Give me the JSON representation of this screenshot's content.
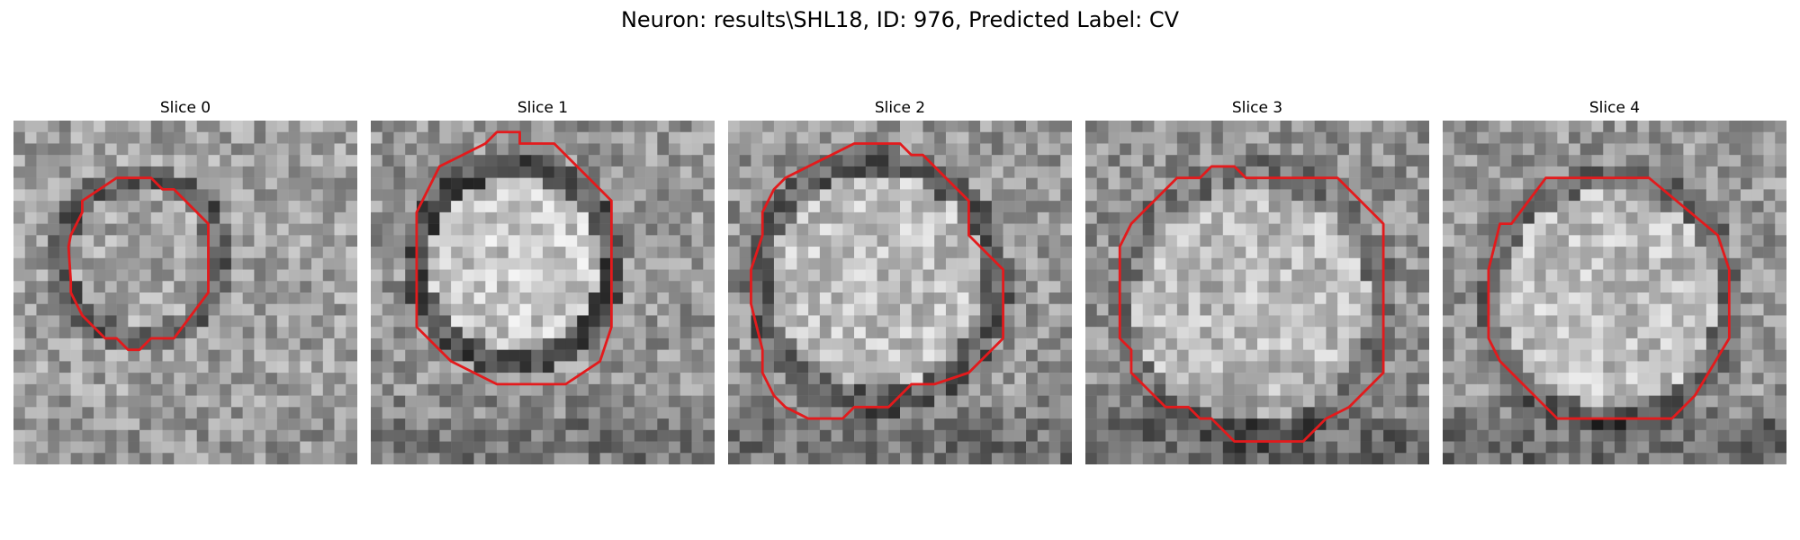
{
  "figure": {
    "title": "Neuron: results\\SHL18, ID: 976, Predicted Label: CV"
  },
  "panels": [
    {
      "title": "Slice 0"
    },
    {
      "title": "Slice 1"
    },
    {
      "title": "Slice 2"
    },
    {
      "title": "Slice 3"
    },
    {
      "title": "Slice 4"
    }
  ],
  "colors": {
    "contour": "#e31a1c",
    "background": "#ffffff"
  }
}
